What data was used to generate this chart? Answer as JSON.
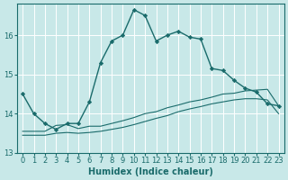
{
  "xlabel": "Humidex (Indice chaleur)",
  "background_color": "#c8e8e8",
  "grid_color": "#ffffff",
  "line_color": "#1a6b6b",
  "xlim": [
    -0.5,
    23.5
  ],
  "ylim": [
    13.0,
    16.8
  ],
  "yticks": [
    13,
    14,
    15,
    16
  ],
  "xticks": [
    0,
    1,
    2,
    3,
    4,
    5,
    6,
    7,
    8,
    9,
    10,
    11,
    12,
    13,
    14,
    15,
    16,
    17,
    18,
    19,
    20,
    21,
    22,
    23
  ],
  "series1_x": [
    0,
    1,
    2,
    3,
    4,
    5,
    6,
    7,
    8,
    9,
    10,
    11,
    12,
    13,
    14,
    15,
    16,
    17,
    18,
    19,
    20,
    21,
    22,
    23
  ],
  "series1_y": [
    14.5,
    14.0,
    13.75,
    13.6,
    13.75,
    13.75,
    14.3,
    15.3,
    15.85,
    16.0,
    16.65,
    16.5,
    15.85,
    16.0,
    16.1,
    15.95,
    15.9,
    15.15,
    15.1,
    14.85,
    14.65,
    14.55,
    14.25,
    14.2
  ],
  "series2_x": [
    0,
    1,
    2,
    3,
    4,
    5,
    6,
    7,
    8,
    9,
    10,
    11,
    12,
    13,
    14,
    15,
    16,
    17,
    18,
    19,
    20,
    21,
    22,
    23
  ],
  "series2_y": [
    13.55,
    13.55,
    13.55,
    13.7,
    13.72,
    13.62,
    13.68,
    13.68,
    13.75,
    13.82,
    13.9,
    14.0,
    14.05,
    14.15,
    14.22,
    14.3,
    14.35,
    14.42,
    14.5,
    14.52,
    14.58,
    14.6,
    14.62,
    14.2
  ],
  "series3_x": [
    0,
    1,
    2,
    3,
    4,
    5,
    6,
    7,
    8,
    9,
    10,
    11,
    12,
    13,
    14,
    15,
    16,
    17,
    18,
    19,
    20,
    21,
    22,
    23
  ],
  "series3_y": [
    13.45,
    13.45,
    13.45,
    13.5,
    13.52,
    13.5,
    13.52,
    13.55,
    13.6,
    13.65,
    13.72,
    13.8,
    13.88,
    13.95,
    14.05,
    14.12,
    14.18,
    14.25,
    14.3,
    14.35,
    14.38,
    14.38,
    14.35,
    14.0
  ],
  "marker": "D",
  "markersize": 2.2,
  "linewidth": 1.0,
  "label_fontsize": 7,
  "tick_fontsize": 6
}
